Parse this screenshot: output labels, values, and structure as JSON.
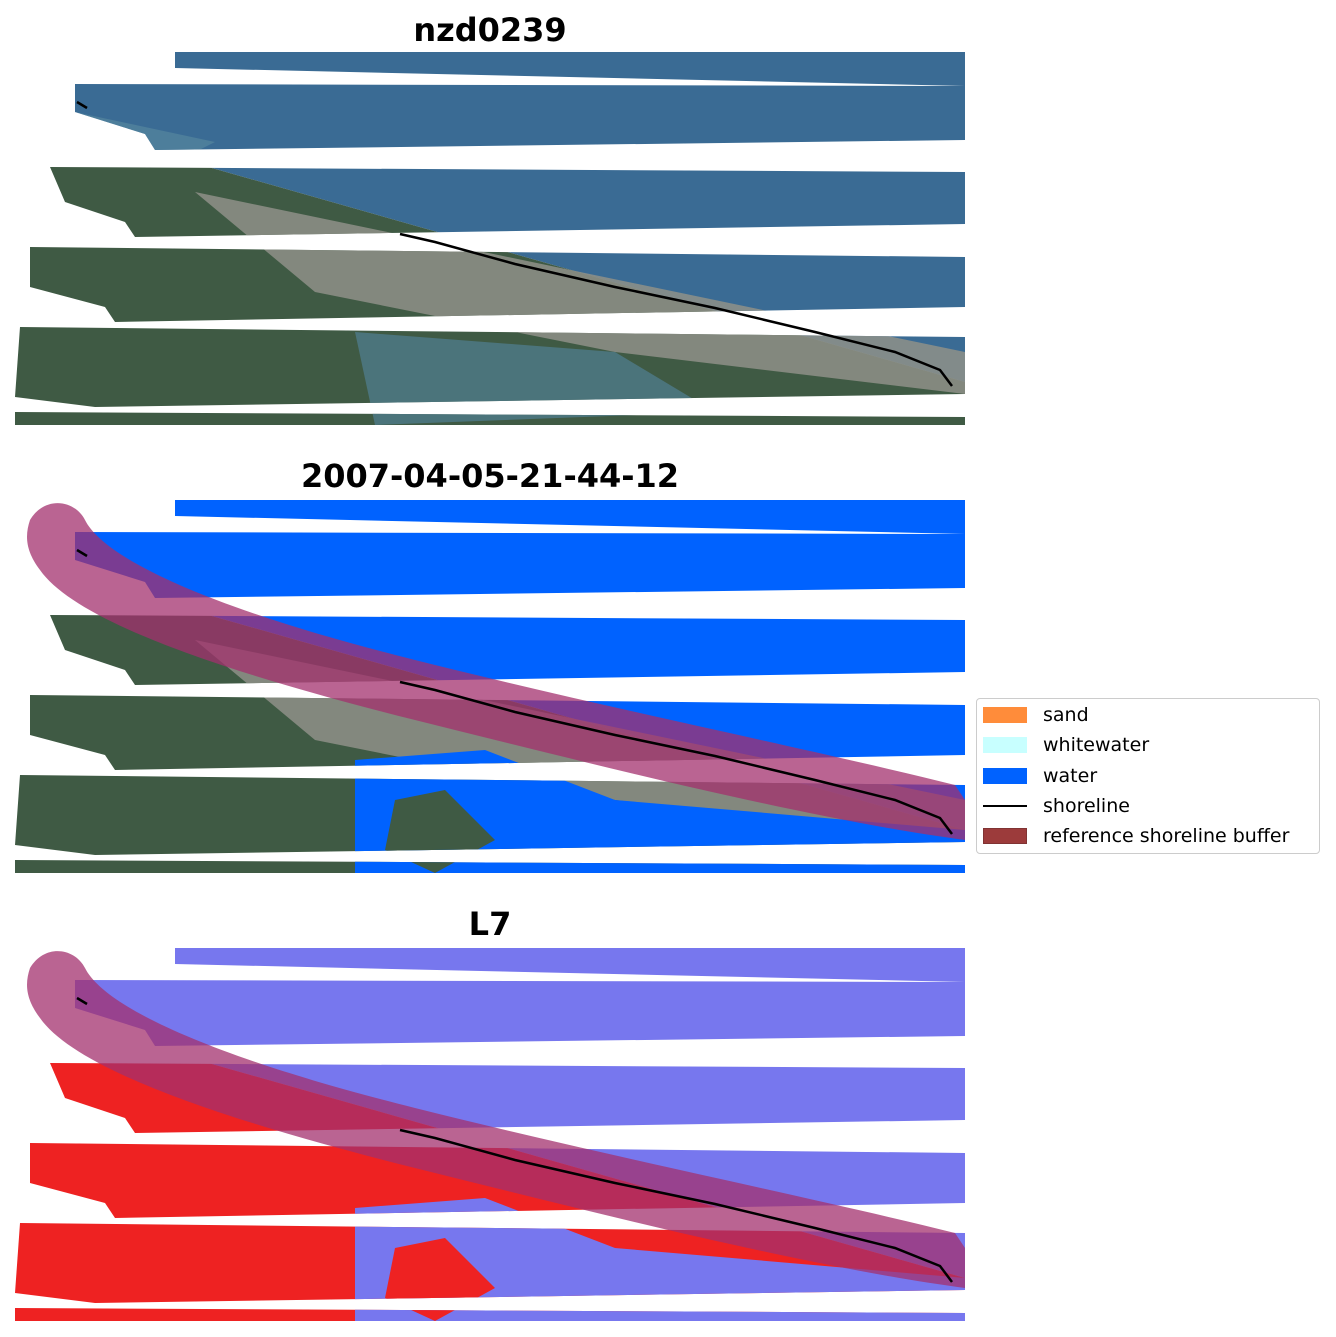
{
  "panels": [
    {
      "title": "nzd0239",
      "mode": "rgb"
    },
    {
      "title": "2007-04-05-21-44-12",
      "mode": "classified"
    },
    {
      "title": "L7",
      "mode": "index"
    }
  ],
  "legend": {
    "items": [
      {
        "label": "sand",
        "kind": "patch",
        "color": "#ff8c3a"
      },
      {
        "label": "whitewater",
        "kind": "patch",
        "color": "#c8ffff"
      },
      {
        "label": "water",
        "kind": "patch",
        "color": "#0062ff"
      },
      {
        "label": "shoreline",
        "kind": "line",
        "color": "#000000"
      },
      {
        "label": "reference shoreline buffer",
        "kind": "patch",
        "color": "#8b1a1a"
      }
    ]
  },
  "colors": {
    "ocean_rgb": "#3a6b94",
    "land_rgb": "#3f5a44",
    "town_rgb": "#8f9088",
    "water_class": "#0062ff",
    "buffer": "#a3306e",
    "index_water": "#7777ee",
    "index_land": "#ee2222"
  }
}
